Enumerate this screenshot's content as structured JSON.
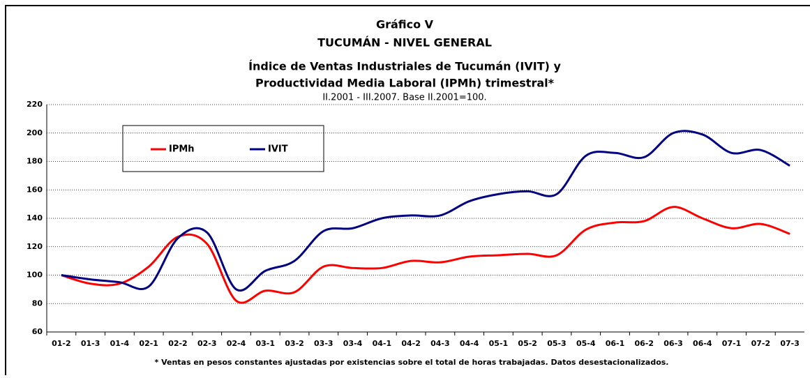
{
  "chart_data": {
    "type": "line",
    "title": [
      "Gráfico V",
      "TUCUMÁN - NIVEL GENERAL",
      "Índice de Ventas Industriales de Tucumán (IVIT) y",
      "Productividad Media Laboral (IPMh) trimestral*"
    ],
    "subtitle": "II.2001 - III.2007. Base II.2001=100.",
    "footnote": "* Ventas en pesos constantes ajustadas por existencias sobre el total de horas trabajadas. Datos desestacionalizados.",
    "categories": [
      "01-2",
      "01-3",
      "01-4",
      "02-1",
      "02-2",
      "02-3",
      "02-4",
      "03-1",
      "03-2",
      "03-3",
      "03-4",
      "04-1",
      "04-2",
      "04-3",
      "04-4",
      "05-1",
      "05-2",
      "05-3",
      "05-4",
      "06-1",
      "06-2",
      "06-3",
      "06-4",
      "07-1",
      "07-2",
      "07-3"
    ],
    "series": [
      {
        "name": "IPMh",
        "color": "#ff0000",
        "values": [
          100,
          94,
          94,
          106,
          127,
          122,
          82,
          89,
          88,
          106,
          105,
          105,
          110,
          109,
          113,
          114,
          115,
          114,
          132,
          137,
          138,
          148,
          140,
          133,
          136,
          129
        ]
      },
      {
        "name": "IVIT",
        "color": "#000080",
        "values": [
          100,
          97,
          95,
          92,
          126,
          130,
          90,
          103,
          110,
          131,
          133,
          140,
          142,
          142,
          152,
          157,
          159,
          157,
          184,
          186,
          183,
          200,
          199,
          186,
          188,
          177
        ]
      }
    ],
    "ylim": [
      60,
      220
    ],
    "yticks": [
      60,
      80,
      100,
      120,
      140,
      160,
      180,
      200,
      220
    ],
    "grid": true
  }
}
